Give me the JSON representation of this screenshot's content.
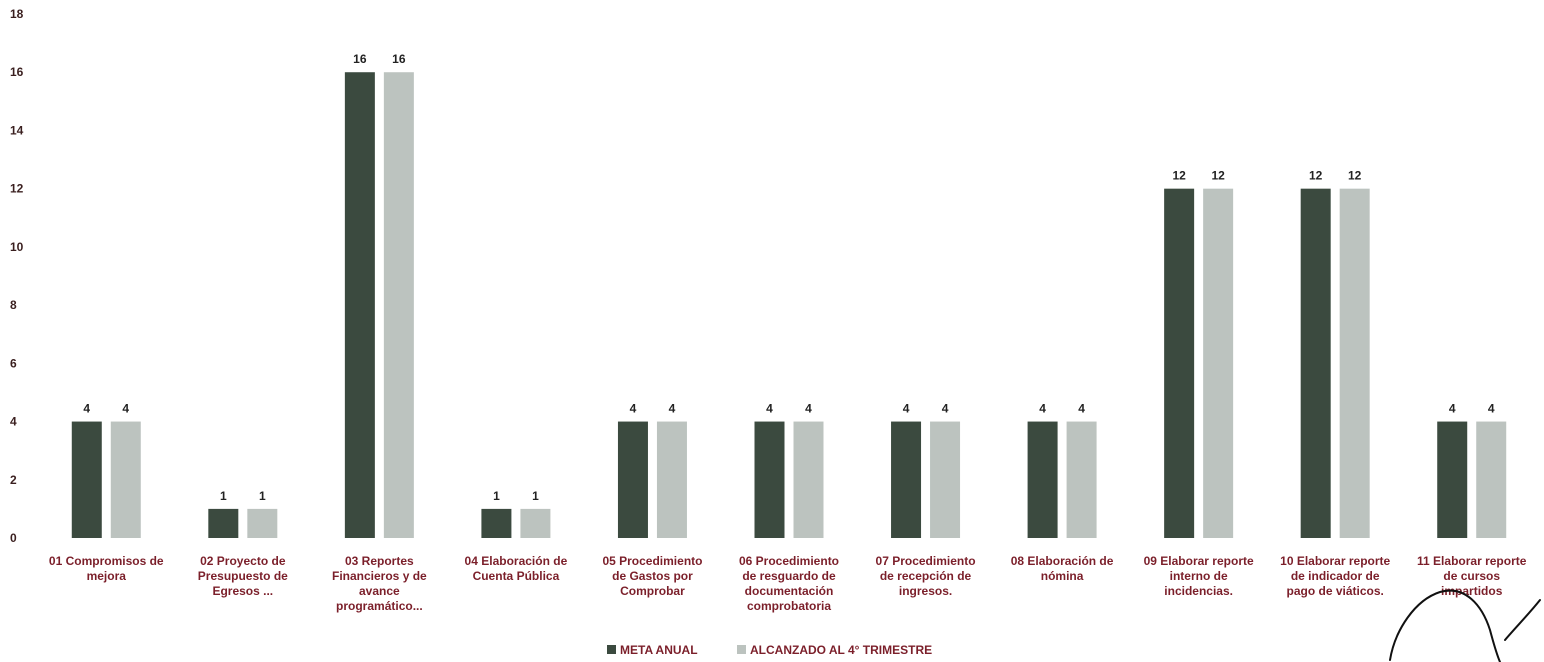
{
  "chart_data": {
    "type": "bar",
    "title": "",
    "xlabel": "",
    "ylabel": "",
    "ylim": [
      0,
      18
    ],
    "yticks": [
      0,
      2,
      4,
      6,
      8,
      10,
      12,
      14,
      16,
      18
    ],
    "grid": false,
    "legend_position": "bottom-center",
    "categories": [
      [
        "01 Compromisos de",
        "mejora"
      ],
      [
        "02 Proyecto de",
        "Presupuesto de",
        "Egresos ..."
      ],
      [
        "03 Reportes",
        "Financieros y de",
        "avance",
        "programático..."
      ],
      [
        "04 Elaboración de",
        "Cuenta Pública"
      ],
      [
        "05 Procedimiento",
        "de Gastos por",
        "Comprobar"
      ],
      [
        "06 Procedimiento",
        "de resguardo de",
        "documentación",
        "comprobatoria"
      ],
      [
        "07 Procedimiento",
        "de recepción de",
        "ingresos."
      ],
      [
        "08 Elaboración de",
        "nómina"
      ],
      [
        "09 Elaborar reporte",
        "interno de",
        "incidencias."
      ],
      [
        "10 Elaborar reporte",
        "de indicador de",
        "pago de viáticos."
      ],
      [
        "11 Elaborar reporte",
        "de cursos",
        "impartidos"
      ]
    ],
    "series": [
      {
        "name": "META ANUAL",
        "color": "#3b4a3f",
        "values": [
          4,
          1,
          16,
          1,
          4,
          4,
          4,
          4,
          12,
          12,
          4
        ]
      },
      {
        "name": "ALCANZADO AL 4° TRIMESTRE",
        "color": "#bcc3bf",
        "values": [
          4,
          1,
          16,
          1,
          4,
          4,
          4,
          4,
          12,
          12,
          4
        ]
      }
    ]
  }
}
